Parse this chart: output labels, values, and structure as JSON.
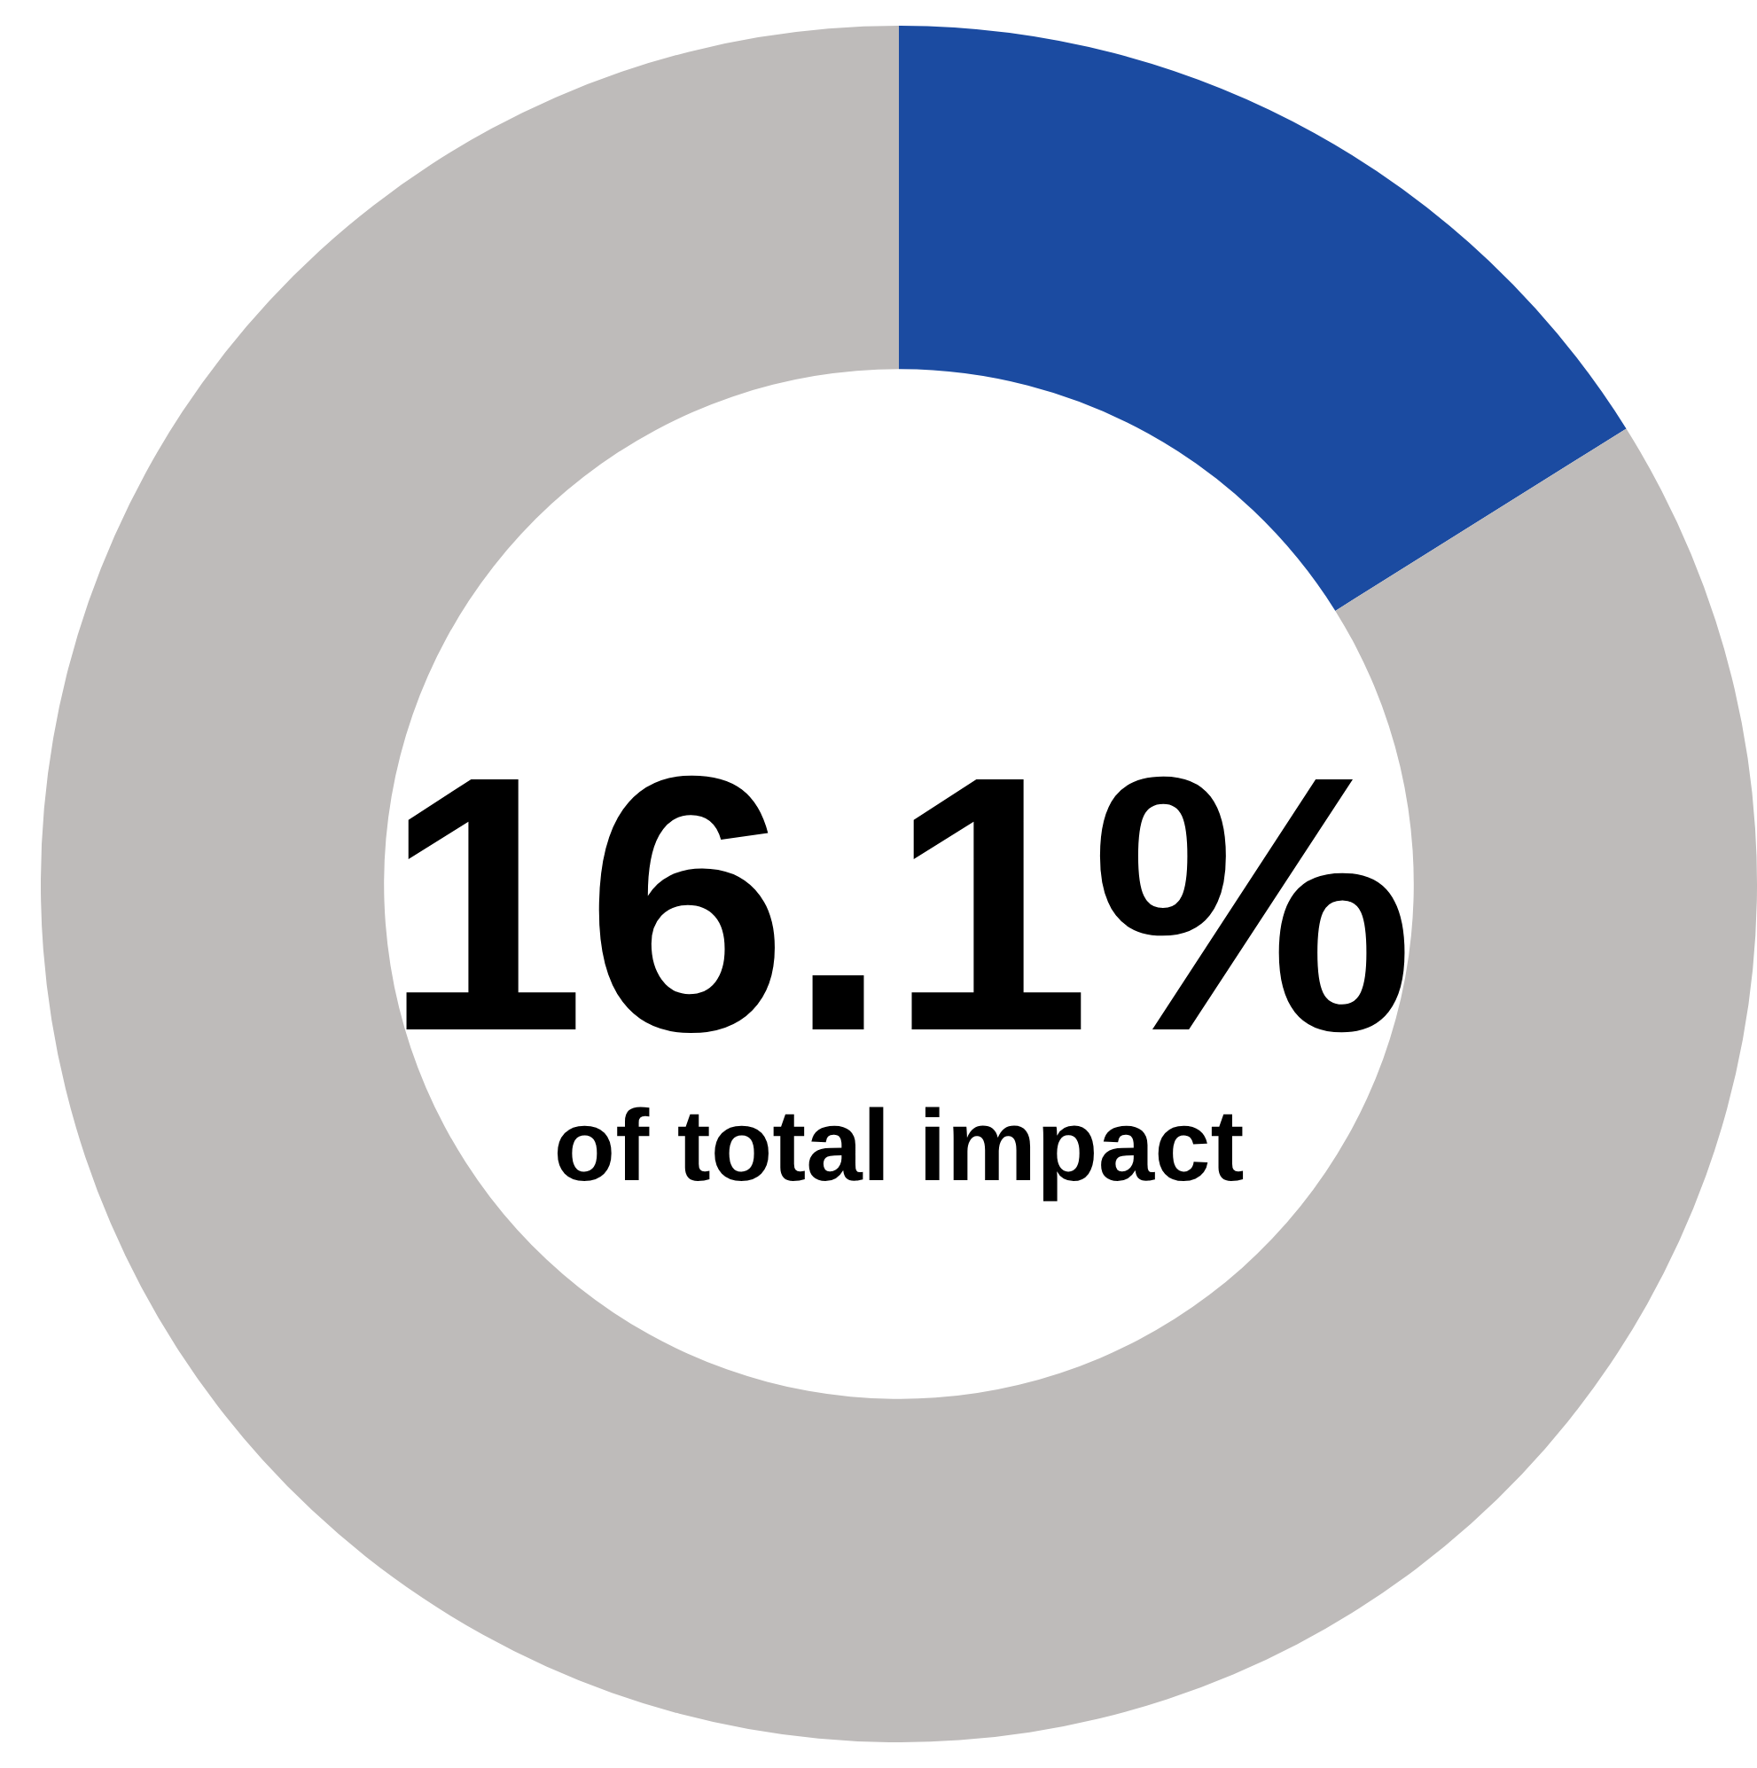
{
  "chart_data": {
    "type": "donut",
    "categories": [
      null,
      null
    ],
    "values": [
      16.1,
      83.9
    ],
    "colors": [
      "#1b4ba1",
      "#bebbba"
    ],
    "annotations": [
      "16.1%",
      "of total impact"
    ]
  }
}
